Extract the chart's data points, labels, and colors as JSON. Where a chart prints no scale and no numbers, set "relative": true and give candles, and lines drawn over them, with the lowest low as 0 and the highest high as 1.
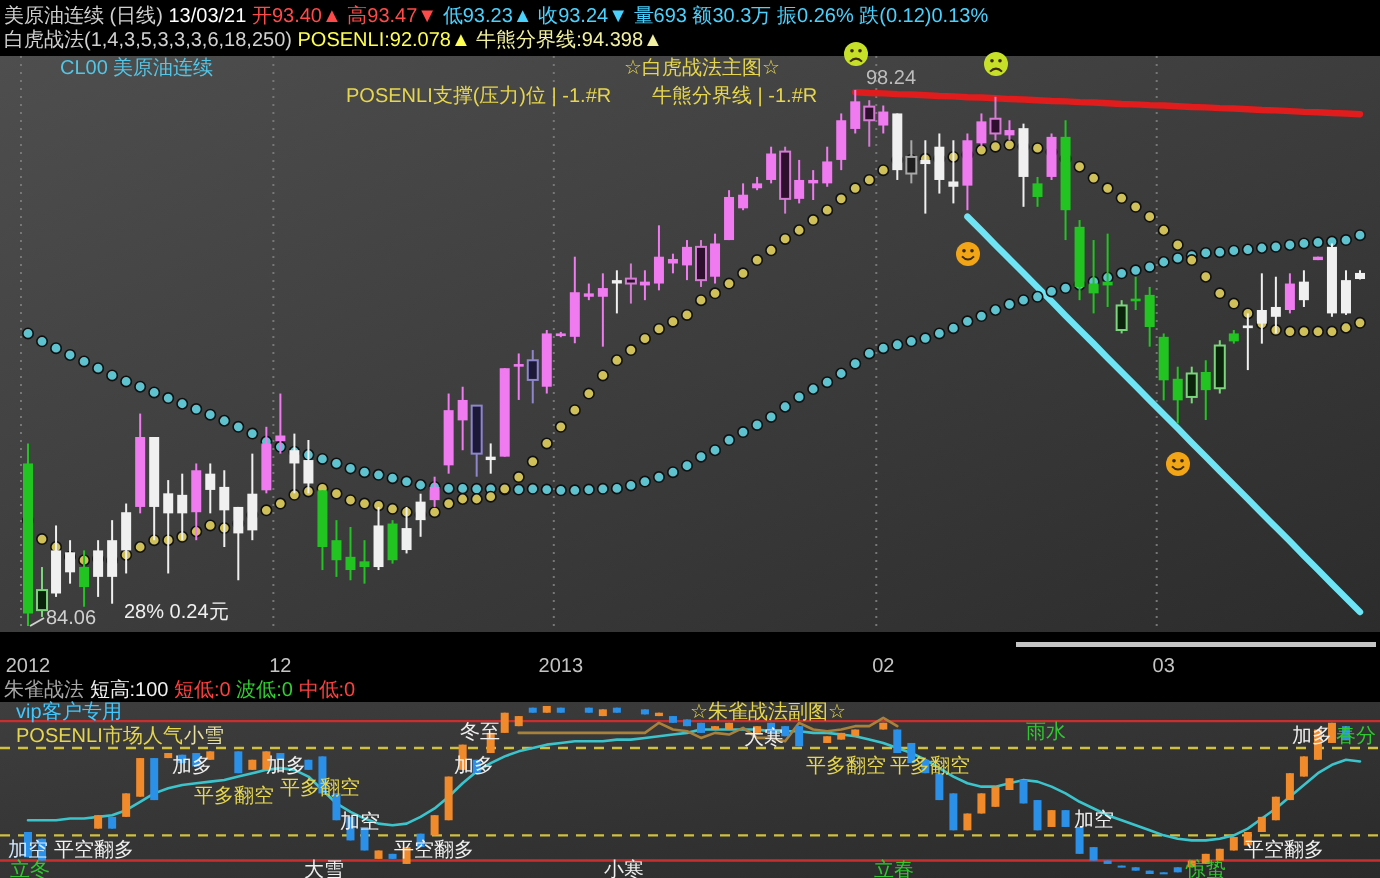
{
  "chart_data": [
    {
      "type": "candlestick",
      "title": "美原油连续 (日线) 13/03/21 开93.40▲ 高93.47▼ 低93.23▲ 收93.24▼ 量693 额30.3万 振0.26% 跌(0.12)0.13%",
      "subtitle": "白虎战法(1,4,3,5,3,3,3,6,18,250) POSENLI:92.078▲ 牛熊分界线:94.398▲",
      "categories": [
        "2012",
        null,
        null,
        null,
        null,
        null,
        null,
        null,
        null,
        null,
        null,
        null,
        null,
        null,
        null,
        null,
        null,
        null,
        "12",
        null,
        null,
        null,
        null,
        null,
        null,
        null,
        null,
        null,
        null,
        null,
        null,
        null,
        null,
        null,
        null,
        null,
        null,
        null,
        "2013",
        null,
        null,
        null,
        null,
        null,
        null,
        null,
        null,
        null,
        null,
        null,
        null,
        null,
        null,
        null,
        null,
        null,
        null,
        null,
        null,
        null,
        null,
        "02",
        null,
        null,
        null,
        null,
        null,
        null,
        null,
        null,
        null,
        null,
        null,
        null,
        null,
        null,
        null,
        null,
        null,
        null,
        null,
        "03",
        null,
        null,
        null,
        null,
        null,
        null,
        null,
        null,
        null,
        null,
        null,
        null,
        null,
        null
      ],
      "ohlc": [
        [
          88.36,
          88.89,
          84.06,
          84.39
        ],
        [
          85.01,
          85.62,
          84.3,
          84.48
        ],
        [
          84.92,
          86.72,
          84.83,
          86.06
        ],
        [
          85.48,
          86.33,
          85.18,
          86.01
        ],
        [
          85.62,
          86.06,
          84.57,
          85.09
        ],
        [
          85.36,
          86.33,
          84.83,
          86.06
        ],
        [
          85.36,
          86.86,
          84.65,
          86.33
        ],
        [
          86.06,
          87.3,
          85.45,
          87.07
        ],
        [
          87.21,
          89.68,
          87.04,
          89.06
        ],
        [
          87.21,
          89.06,
          86.33,
          89.06
        ],
        [
          87.04,
          87.92,
          85.45,
          87.57
        ],
        [
          87.04,
          88.09,
          86.33,
          87.53
        ],
        [
          87.07,
          88.36,
          86.33,
          88.18
        ],
        [
          87.66,
          88.36,
          87.04,
          88.09
        ],
        [
          87.12,
          88.18,
          86.15,
          87.74
        ],
        [
          86.51,
          87.21,
          85.27,
          87.21
        ],
        [
          86.59,
          88.62,
          86.33,
          87.56
        ],
        [
          87.65,
          89.33,
          87.57,
          88.89
        ],
        [
          88.95,
          90.21,
          88.62,
          89.1
        ],
        [
          88.36,
          89.15,
          87.57,
          88.71
        ],
        [
          87.83,
          88.98,
          87.57,
          88.45
        ],
        [
          87.65,
          87.65,
          85.54,
          86.15
        ],
        [
          86.33,
          86.86,
          85.36,
          85.8
        ],
        [
          85.89,
          86.68,
          85.27,
          85.54
        ],
        [
          85.77,
          86.33,
          85.18,
          85.62
        ],
        [
          85.62,
          87.21,
          85.54,
          86.72
        ],
        [
          86.77,
          86.86,
          85.71,
          85.8
        ],
        [
          86.07,
          87.21,
          85.98,
          86.65
        ],
        [
          86.86,
          87.56,
          86.42,
          87.35
        ],
        [
          87.39,
          88.01,
          87.21,
          87.74
        ],
        [
          88.31,
          90.21,
          88.09,
          89.77
        ],
        [
          89.5,
          90.39,
          88.71,
          90.04
        ],
        [
          89.89,
          89.89,
          88.01,
          88.62
        ],
        [
          88.45,
          88.89,
          88.09,
          88.54
        ],
        [
          88.54,
          90.88,
          88.54,
          90.88
        ],
        [
          90.92,
          91.27,
          90.04,
          90.99
        ],
        [
          91.09,
          91.36,
          89.95,
          90.57
        ],
        [
          90.39,
          91.89,
          90.21,
          91.8
        ],
        [
          91.73,
          91.84,
          91.7,
          91.8
        ],
        [
          91.71,
          93.83,
          91.54,
          92.89
        ],
        [
          92.77,
          93.12,
          92.68,
          92.86
        ],
        [
          92.77,
          93.39,
          91.45,
          93.0
        ],
        [
          93.12,
          93.47,
          92.33,
          93.21
        ],
        [
          93.25,
          93.65,
          92.59,
          93.12
        ],
        [
          93.07,
          93.47,
          92.68,
          93.17
        ],
        [
          93.12,
          94.66,
          92.94,
          93.83
        ],
        [
          93.65,
          93.91,
          93.39,
          93.77
        ],
        [
          93.6,
          94.27,
          93.21,
          94.09
        ],
        [
          94.09,
          94.27,
          93.03,
          93.21
        ],
        [
          93.3,
          94.44,
          93.12,
          94.18
        ],
        [
          94.27,
          95.59,
          94.27,
          95.41
        ],
        [
          95.11,
          95.77,
          95.06,
          95.47
        ],
        [
          95.64,
          95.94,
          95.59,
          95.77
        ],
        [
          95.86,
          96.74,
          95.77,
          96.56
        ],
        [
          96.61,
          96.74,
          94.97,
          95.36
        ],
        [
          95.36,
          96.39,
          95.24,
          95.86
        ],
        [
          95.77,
          96.12,
          95.33,
          95.86
        ],
        [
          95.77,
          96.74,
          95.68,
          96.35
        ],
        [
          96.39,
          97.62,
          96.12,
          97.44
        ],
        [
          97.21,
          98.24,
          97.09,
          97.94
        ],
        [
          97.8,
          97.97,
          96.74,
          97.44
        ],
        [
          97.3,
          97.83,
          97.09,
          97.67
        ],
        [
          97.62,
          97.62,
          95.86,
          96.12
        ],
        [
          96.47,
          96.91,
          95.77,
          96.03
        ],
        [
          96.28,
          96.91,
          94.97,
          96.39
        ],
        [
          95.86,
          97.09,
          95.5,
          96.74
        ],
        [
          95.68,
          96.91,
          95.24,
          95.82
        ],
        [
          95.71,
          97.09,
          95.06,
          96.91
        ],
        [
          96.83,
          97.62,
          96.74,
          97.41
        ],
        [
          97.48,
          98.06,
          96.91,
          97.09
        ],
        [
          97.04,
          97.44,
          96.91,
          97.18
        ],
        [
          97.23,
          97.35,
          95.15,
          95.94
        ],
        [
          95.77,
          95.94,
          95.15,
          95.41
        ],
        [
          95.94,
          97.09,
          95.86,
          97.0
        ],
        [
          97.0,
          97.44,
          94.27,
          95.06
        ],
        [
          94.62,
          94.8,
          92.68,
          93.03
        ],
        [
          93.12,
          94.27,
          92.33,
          92.86
        ],
        [
          93.17,
          94.44,
          92.5,
          93.07
        ],
        [
          92.54,
          92.68,
          91.8,
          91.89
        ],
        [
          92.72,
          93.3,
          92.42,
          92.65
        ],
        [
          92.82,
          93.03,
          91.45,
          91.97
        ],
        [
          91.71,
          91.8,
          90.03,
          90.56
        ],
        [
          90.6,
          90.92,
          89.42,
          90.03
        ],
        [
          90.74,
          90.92,
          89.95,
          90.12
        ],
        [
          90.78,
          91.09,
          89.51,
          90.3
        ],
        [
          91.48,
          91.62,
          90.21,
          90.35
        ],
        [
          91.8,
          91.89,
          91.53,
          91.59
        ],
        [
          91.94,
          92.33,
          90.83,
          92.01
        ],
        [
          92.06,
          93.39,
          91.53,
          92.42
        ],
        [
          92.24,
          93.3,
          91.8,
          92.5
        ],
        [
          92.42,
          93.39,
          92.33,
          93.12
        ],
        [
          92.68,
          93.47,
          92.5,
          93.17
        ],
        [
          93.74,
          93.83,
          93.74,
          93.83
        ],
        [
          92.33,
          94.18,
          92.24,
          94.09
        ],
        [
          92.33,
          93.47,
          92.29,
          93.21
        ],
        [
          93.4,
          93.47,
          93.23,
          93.24
        ]
      ],
      "colors": [
        "#22c422",
        "#0b220b",
        "#f0f0f0",
        "#f0f0f0",
        "#22c422",
        "#f0f0f0",
        "#f0f0f0",
        "#f0f0f0",
        "#f07af0",
        "#f0f0f0",
        "#f0f0f0",
        "#f0f0f0",
        "#f07af0",
        "#f0f0f0",
        "#f0f0f0",
        "#f0f0f0",
        "#f0f0f0",
        "#f07af0",
        "#f07af0",
        "#f0f0f0",
        "#f0f0f0",
        "#22c422",
        "#22c422",
        "#22c422",
        "#22c422",
        "#f0f0f0",
        "#22c422",
        "#f0f0f0",
        "#f0f0f0",
        "#f07af0",
        "#f07af0",
        "#f07af0",
        "#1c1838",
        "#f0f0f0",
        "#f07af0",
        "#f07af0",
        "#1c1838",
        "#f07af0",
        "#f07af0",
        "#f07af0",
        "#f07af0",
        "#f07af0",
        "#f0f0f0",
        "#2e0f2e",
        "#f07af0",
        "#f07af0",
        "#f07af0",
        "#f07af0",
        "#2e0f2e",
        "#f07af0",
        "#f07af0",
        "#f07af0",
        "#f07af0",
        "#f07af0",
        "#2e0f2e",
        "#f07af0",
        "#f07af0",
        "#f07af0",
        "#f07af0",
        "#f07af0",
        "#2e0f2e",
        "#f07af0",
        "#f0f0f0",
        "#1e1e1e",
        "#f0f0f0",
        "#f0f0f0",
        "#f0f0f0",
        "#f07af0",
        "#f07af0",
        "#2e0f2e",
        "#f07af0",
        "#f0f0f0",
        "#22c422",
        "#f07af0",
        "#22c422",
        "#22c422",
        "#22c422",
        "#22c422",
        "#0b220b",
        "#22c422",
        "#22c422",
        "#22c422",
        "#22c422",
        "#0b220b",
        "#22c422",
        "#0b220b",
        "#22c422",
        "#f0f0f0",
        "#f0f0f0",
        "#f0f0f0",
        "#f07af0",
        "#f0f0f0",
        "#f07af0",
        "#f0f0f0",
        "#f0f0f0",
        "#f0f0f0"
      ],
      "series": [
        {
          "type": "scatter",
          "marker": "circle",
          "color": "#5ec2cf",
          "values": [
            91.8,
            91.59,
            91.41,
            91.23,
            91.06,
            90.88,
            90.69,
            90.53,
            90.39,
            90.24,
            90.09,
            89.94,
            89.8,
            89.65,
            89.49,
            89.33,
            89.15,
            88.94,
            88.8,
            88.67,
            88.59,
            88.48,
            88.36,
            88.23,
            88.13,
            88.06,
            87.97,
            87.88,
            87.79,
            87.74,
            87.7,
            87.7,
            87.69,
            87.69,
            87.67,
            87.67,
            87.69,
            87.67,
            87.65,
            87.65,
            87.67,
            87.69,
            87.7,
            87.78,
            87.88,
            88.0,
            88.13,
            88.3,
            88.54,
            88.71,
            88.98,
            89.19,
            89.38,
            89.59,
            89.86,
            90.12,
            90.33,
            90.51,
            90.74,
            91.0,
            91.27,
            91.41,
            91.5,
            91.59,
            91.67,
            91.8,
            91.94,
            92.12,
            92.26,
            92.42,
            92.57,
            92.68,
            92.77,
            92.91,
            93.0,
            93.09,
            93.17,
            93.28,
            93.39,
            93.47,
            93.56,
            93.69,
            93.79,
            93.86,
            93.93,
            93.95,
            93.99,
            94.02,
            94.06,
            94.09,
            94.14,
            94.18,
            94.21,
            94.23,
            94.27,
            94.4
          ]
        },
        {
          "type": "scatter",
          "marker": "circle",
          "color": "#cfc05a",
          "values": [
            86.86,
            86.36,
            86.15,
            85.89,
            85.8,
            85.83,
            85.8,
            85.94,
            86.15,
            86.33,
            86.33,
            86.42,
            86.56,
            86.72,
            86.65,
            86.77,
            87.0,
            87.12,
            87.3,
            87.53,
            87.62,
            87.7,
            87.56,
            87.39,
            87.3,
            87.25,
            87.16,
            87.07,
            87.0,
            87.07,
            87.3,
            87.42,
            87.42,
            87.48,
            87.69,
            88.0,
            88.41,
            88.89,
            89.33,
            89.77,
            90.21,
            90.69,
            91.09,
            91.36,
            91.66,
            91.92,
            92.11,
            92.29,
            92.68,
            92.86,
            93.12,
            93.39,
            93.74,
            94.0,
            94.3,
            94.53,
            94.8,
            95.06,
            95.36,
            95.64,
            95.86,
            96.12,
            96.39,
            96.39,
            96.42,
            96.42,
            96.47,
            96.53,
            96.65,
            96.74,
            96.79,
            96.74,
            96.7,
            96.6,
            96.42,
            96.21,
            95.91,
            95.64,
            95.38,
            95.15,
            94.89,
            94.53,
            94.14,
            93.74,
            93.3,
            92.86,
            92.59,
            92.33,
            92.06,
            91.89,
            91.85,
            91.85,
            91.85,
            91.85,
            91.95,
            92.08
          ]
        },
        {
          "type": "line",
          "color": "#e01c1c",
          "values": [
            null,
            null,
            null,
            null,
            null,
            null,
            null,
            null,
            null,
            null,
            null,
            null,
            null,
            null,
            null,
            null,
            null,
            null,
            null,
            null,
            null,
            null,
            null,
            null,
            null,
            null,
            null,
            null,
            null,
            null,
            null,
            null,
            null,
            null,
            null,
            null,
            null,
            null,
            null,
            null,
            null,
            null,
            null,
            null,
            null,
            null,
            null,
            null,
            null,
            null,
            null,
            null,
            null,
            null,
            null,
            null,
            null,
            null,
            null,
            98.18,
            98.16,
            98.15,
            98.13,
            98.12,
            98.1,
            98.08,
            98.07,
            98.05,
            98.04,
            98.02,
            98.0,
            97.99,
            97.97,
            97.95,
            97.94,
            97.92,
            97.91,
            97.89,
            97.87,
            97.86,
            97.84,
            97.83,
            97.81,
            97.79,
            97.78,
            97.76,
            97.75,
            97.73,
            97.71,
            97.7,
            97.68,
            97.66,
            97.65,
            97.63,
            97.62,
            97.6
          ]
        },
        {
          "type": "line",
          "color": "#6ee4f4",
          "values": [
            null,
            null,
            null,
            null,
            null,
            null,
            null,
            null,
            null,
            null,
            null,
            null,
            null,
            null,
            null,
            null,
            null,
            null,
            null,
            null,
            null,
            null,
            null,
            null,
            null,
            null,
            null,
            null,
            null,
            null,
            null,
            null,
            null,
            null,
            null,
            null,
            null,
            null,
            null,
            null,
            null,
            null,
            null,
            null,
            null,
            null,
            null,
            null,
            null,
            null,
            null,
            null,
            null,
            null,
            null,
            null,
            null,
            null,
            null,
            null,
            null,
            null,
            null,
            null,
            null,
            null,
            null,
            94.89,
            94.52,
            94.14,
            93.77,
            93.4,
            93.02,
            92.65,
            92.27,
            91.9,
            91.53,
            91.15,
            90.78,
            90.41,
            90.03,
            89.66,
            89.29,
            88.91,
            88.54,
            88.16,
            87.79,
            87.42,
            87.04,
            86.67,
            86.3,
            85.92,
            85.55,
            85.17,
            84.8,
            84.43
          ]
        }
      ],
      "annotations": [
        "CL00 美原油连续",
        "☆白虎战法主图☆",
        "POSENLI支撑(压力)位 | -1.#R",
        "牛熊分界线 | -1.#R",
        "98.24",
        "84.06",
        "28% 0.24元"
      ],
      "grid": "x",
      "tick_labels": "x"
    },
    {
      "type": "candlestick",
      "title": "朱雀战法 短高:100 短低:0 波低:0 中低:0",
      "relative": true,
      "tick_labels": false,
      "categories": [
        "2012",
        null,
        null,
        null,
        null,
        null,
        null,
        null,
        null,
        null,
        null,
        null,
        null,
        null,
        null,
        null,
        null,
        null,
        "12",
        null,
        null,
        null,
        null,
        null,
        null,
        null,
        null,
        null,
        null,
        null,
        null,
        null,
        null,
        null,
        null,
        null,
        null,
        null,
        "2013",
        null,
        null,
        null,
        null,
        null,
        null,
        null,
        null,
        null,
        null,
        null,
        null,
        null,
        null,
        null,
        null,
        null,
        null,
        null,
        null,
        null,
        null,
        "02",
        null,
        null,
        null,
        null,
        null,
        null,
        null,
        null,
        null,
        null,
        null,
        null,
        null,
        null,
        null,
        null,
        null,
        null,
        null,
        "03",
        null,
        null,
        null,
        null,
        null,
        null,
        null,
        null,
        null,
        null,
        null,
        null,
        null,
        null
      ],
      "ohlc": [
        [
          0.25,
          0.25,
          0.1,
          0.1
        ],
        [
          0.21,
          0.21,
          0.08,
          0.08
        ],
        null,
        null,
        null,
        [
          0.27,
          0.35,
          0.27,
          0.35
        ],
        [
          0.34,
          0.34,
          0.27,
          0.27
        ],
        [
          0.34,
          0.48,
          0.34,
          0.48
        ],
        [
          0.46,
          0.69,
          0.46,
          0.69
        ],
        [
          0.69,
          0.69,
          0.44,
          0.44
        ],
        [
          0.69,
          0.72,
          0.69,
          0.72
        ],
        [
          0.71,
          0.71,
          0.66,
          0.66
        ],
        [
          0.72,
          0.72,
          0.64,
          0.64
        ],
        [
          0.68,
          0.73,
          0.68,
          0.73
        ],
        null,
        [
          0.73,
          0.73,
          0.6,
          0.6
        ],
        [
          0.62,
          0.68,
          0.62,
          0.68
        ],
        [
          0.62,
          0.73,
          0.62,
          0.73
        ],
        [
          0.72,
          0.72,
          0.68,
          0.68
        ],
        null,
        [
          0.68,
          0.68,
          0.62,
          0.62
        ],
        [
          0.7,
          0.7,
          0.48,
          0.48
        ],
        [
          0.48,
          0.48,
          0.32,
          0.32
        ],
        [
          0.34,
          0.34,
          0.2,
          0.2
        ],
        [
          0.28,
          0.28,
          0.14,
          0.14
        ],
        [
          0.09,
          0.14,
          0.09,
          0.14
        ],
        [
          0.12,
          0.12,
          0.09,
          0.09
        ],
        [
          0.06,
          0.16,
          0.06,
          0.16
        ],
        [
          0.24,
          0.24,
          0.16,
          0.16
        ],
        [
          0.23,
          0.35,
          0.23,
          0.35
        ],
        [
          0.32,
          0.58,
          0.32,
          0.58
        ],
        [
          0.62,
          0.77,
          0.62,
          0.77
        ],
        [
          0.68,
          0.68,
          0.6,
          0.6
        ],
        [
          0.72,
          0.84,
          0.72,
          0.84
        ],
        [
          0.84,
          0.96,
          0.84,
          0.96
        ],
        [
          0.88,
          0.94,
          0.88,
          0.94
        ],
        [
          0.99,
          0.99,
          0.96,
          0.96
        ],
        [
          0.96,
          1.0,
          0.96,
          1.0
        ],
        [
          0.99,
          0.99,
          0.96,
          0.96
        ],
        null,
        [
          0.99,
          0.99,
          0.96,
          0.96
        ],
        [
          0.94,
          0.98,
          0.94,
          0.98
        ],
        [
          0.99,
          0.99,
          0.96,
          0.96
        ],
        null,
        [
          0.98,
          0.98,
          0.95,
          0.95
        ],
        [
          0.94,
          0.96,
          0.94,
          0.96
        ],
        [
          0.94,
          0.94,
          0.9,
          0.9
        ],
        [
          0.92,
          0.92,
          0.88,
          0.88
        ],
        [
          0.9,
          0.9,
          0.84,
          0.84
        ],
        [
          0.86,
          0.88,
          0.86,
          0.88
        ],
        [
          0.86,
          0.9,
          0.86,
          0.9
        ],
        null,
        [
          0.84,
          0.88,
          0.84,
          0.88
        ],
        [
          0.9,
          0.9,
          0.84,
          0.84
        ],
        [
          0.88,
          0.88,
          0.82,
          0.82
        ],
        [
          0.88,
          0.88,
          0.76,
          0.76
        ],
        null,
        [
          0.78,
          0.82,
          0.78,
          0.82
        ],
        [
          0.8,
          0.84,
          0.8,
          0.84
        ],
        [
          0.82,
          0.86,
          0.82,
          0.86
        ],
        null,
        [
          0.86,
          0.9,
          0.86,
          0.9
        ],
        [
          0.86,
          0.86,
          0.72,
          0.72
        ],
        [
          0.78,
          0.78,
          0.66,
          0.66
        ],
        [
          0.68,
          0.68,
          0.6,
          0.6
        ],
        [
          0.6,
          0.6,
          0.44,
          0.44
        ],
        [
          0.48,
          0.48,
          0.26,
          0.26
        ],
        [
          0.26,
          0.36,
          0.26,
          0.36
        ],
        [
          0.36,
          0.48,
          0.36,
          0.48
        ],
        [
          0.4,
          0.52,
          0.4,
          0.52
        ],
        [
          0.5,
          0.57,
          0.5,
          0.57
        ],
        [
          0.56,
          0.56,
          0.42,
          0.42
        ],
        [
          0.44,
          0.44,
          0.26,
          0.26
        ],
        [
          0.28,
          0.38,
          0.28,
          0.38
        ],
        [
          0.38,
          0.38,
          0.28,
          0.28
        ],
        [
          0.28,
          0.28,
          0.12,
          0.12
        ],
        [
          0.16,
          0.16,
          0.08,
          0.08
        ],
        [
          0.08,
          0.08,
          0.06,
          0.06
        ],
        [
          0.05,
          0.05,
          0.04,
          0.04
        ],
        [
          0.04,
          0.04,
          0.02,
          0.02
        ],
        [
          0.02,
          0.02,
          0.0,
          0.0
        ],
        [
          0.01,
          0.01,
          0.0,
          0.0
        ],
        [
          0.04,
          0.04,
          0.01,
          0.01
        ],
        [
          0.04,
          0.08,
          0.04,
          0.08
        ],
        [
          0.06,
          0.12,
          0.06,
          0.12
        ],
        [
          0.08,
          0.15,
          0.08,
          0.15
        ],
        [
          0.14,
          0.22,
          0.14,
          0.22
        ],
        [
          0.17,
          0.25,
          0.17,
          0.25
        ],
        [
          0.25,
          0.34,
          0.25,
          0.34
        ],
        [
          0.32,
          0.46,
          0.32,
          0.46
        ],
        [
          0.44,
          0.6,
          0.44,
          0.6
        ],
        [
          0.58,
          0.7,
          0.58,
          0.7
        ],
        [
          0.68,
          0.86,
          0.68,
          0.86
        ],
        [
          0.78,
          0.9,
          0.78,
          0.9
        ],
        [
          0.88,
          0.88,
          0.8,
          0.8
        ],
        null
      ],
      "colors": [
        "#2a90e8",
        "#2a90e8",
        null,
        null,
        null,
        "#f08a2a",
        "#2a90e8",
        "#f08a2a",
        "#f08a2a",
        "#2a90e8",
        "#f08a2a",
        "#2a90e8",
        "#2a90e8",
        "#f08a2a",
        null,
        "#2a90e8",
        "#f08a2a",
        "#f08a2a",
        "#2a90e8",
        null,
        "#2a90e8",
        "#2a90e8",
        "#2a90e8",
        "#2a90e8",
        "#2a90e8",
        "#f08a2a",
        "#2a90e8",
        "#f08a2a",
        "#2a90e8",
        "#f08a2a",
        "#f08a2a",
        "#f08a2a",
        "#2a90e8",
        "#f08a2a",
        "#f08a2a",
        "#f08a2a",
        "#2a90e8",
        "#f08a2a",
        "#2a90e8",
        null,
        "#2a90e8",
        "#f08a2a",
        "#2a90e8",
        null,
        "#2a90e8",
        "#f08a2a",
        "#2a90e8",
        "#2a90e8",
        "#2a90e8",
        "#f08a2a",
        "#f08a2a",
        null,
        "#f08a2a",
        "#2a90e8",
        "#2a90e8",
        "#2a90e8",
        null,
        "#f08a2a",
        "#f08a2a",
        "#f08a2a",
        null,
        "#f08a2a",
        "#2a90e8",
        "#2a90e8",
        "#2a90e8",
        "#2a90e8",
        "#2a90e8",
        "#f08a2a",
        "#f08a2a",
        "#f08a2a",
        "#f08a2a",
        "#2a90e8",
        "#2a90e8",
        "#f08a2a",
        "#2a90e8",
        "#2a90e8",
        "#2a90e8",
        "#2a90e8",
        "#2a90e8",
        "#2a90e8",
        "#2a90e8",
        "#2a90e8",
        "#2a90e8",
        "#f08a2a",
        "#f08a2a",
        "#f08a2a",
        "#f08a2a",
        "#f08a2a",
        "#f08a2a",
        "#f08a2a",
        "#f08a2a",
        "#f08a2a",
        "#f08a2a",
        "#f08a2a",
        "#2a90e8",
        null
      ],
      "series": [
        {
          "type": "line",
          "color": "#3cc4cc",
          "values": [
            0.32,
            0.32,
            0.32,
            0.33,
            0.33,
            0.34,
            0.35,
            0.38,
            0.43,
            0.48,
            0.51,
            0.53,
            0.54,
            0.55,
            0.56,
            0.58,
            0.6,
            0.62,
            0.63,
            0.62,
            0.58,
            0.5,
            0.42,
            0.37,
            0.33,
            0.3,
            0.29,
            0.3,
            0.34,
            0.39,
            0.46,
            0.54,
            0.61,
            0.66,
            0.7,
            0.73,
            0.75,
            0.77,
            0.78,
            0.79,
            0.79,
            0.79,
            0.8,
            0.8,
            0.81,
            0.82,
            0.83,
            0.84,
            0.86,
            0.86,
            0.86,
            0.86,
            0.86,
            0.85,
            0.85,
            0.85,
            0.84,
            0.84,
            0.83,
            0.82,
            0.8,
            0.78,
            0.75,
            0.72,
            0.68,
            0.63,
            0.58,
            0.54,
            0.52,
            0.52,
            0.54,
            0.56,
            0.55,
            0.52,
            0.48,
            0.43,
            0.39,
            0.35,
            0.32,
            0.29,
            0.26,
            0.23,
            0.21,
            0.2,
            0.2,
            0.21,
            0.23,
            0.27,
            0.33,
            0.39,
            0.46,
            0.53,
            0.6,
            0.65,
            0.68,
            0.67
          ]
        },
        {
          "type": "line",
          "color": "#a8823c",
          "values": [
            null,
            null,
            null,
            null,
            null,
            null,
            null,
            null,
            null,
            null,
            null,
            null,
            null,
            null,
            null,
            null,
            null,
            null,
            null,
            null,
            null,
            null,
            null,
            null,
            null,
            null,
            null,
            null,
            null,
            null,
            null,
            null,
            null,
            null,
            null,
            0.84,
            0.84,
            0.84,
            0.84,
            0.84,
            0.84,
            0.84,
            0.84,
            0.84,
            0.84,
            0.9,
            0.86,
            0.85,
            0.81,
            0.84,
            0.83,
            0.87,
            0.81,
            0.81,
            0.79,
            0.9,
            0.86,
            0.85,
            0.86,
            0.88,
            0.88,
            0.93,
            0.88,
            null,
            null,
            null,
            null,
            null,
            null,
            null,
            null,
            null,
            null,
            null,
            null,
            null,
            null,
            null,
            null,
            null,
            null,
            null,
            null,
            null,
            null,
            null,
            null,
            null,
            null,
            null,
            null,
            null,
            null,
            null,
            null,
            null
          ]
        }
      ],
      "ref_lines": [
        {
          "axis": "y",
          "value": 0.91,
          "color": "#c83030"
        },
        {
          "axis": "y",
          "value": 0.75,
          "color": "#d0c040",
          "line_style": "dashed"
        },
        {
          "axis": "y",
          "value": 0.23,
          "color": "#d0c040",
          "line_style": "dashed"
        },
        {
          "axis": "y",
          "value": 0.08,
          "color": "#c83030"
        }
      ],
      "annotations": [
        "vip客户专用",
        "POSENLI市场人气",
        "☆朱雀战法副图☆",
        "加空",
        "平空翻多",
        "加多",
        "平多翻空",
        "加多",
        "平多翻空",
        "加空",
        "平空翻多",
        "加多",
        "平多翻空",
        "平多翻空",
        "加空",
        "平空翻多",
        "加多",
        "立冬",
        "小雪",
        "大雪",
        "冬至",
        "小寒",
        "大寒",
        "立春",
        "雨水",
        "惊蛰",
        "春分"
      ]
    }
  ]
}
